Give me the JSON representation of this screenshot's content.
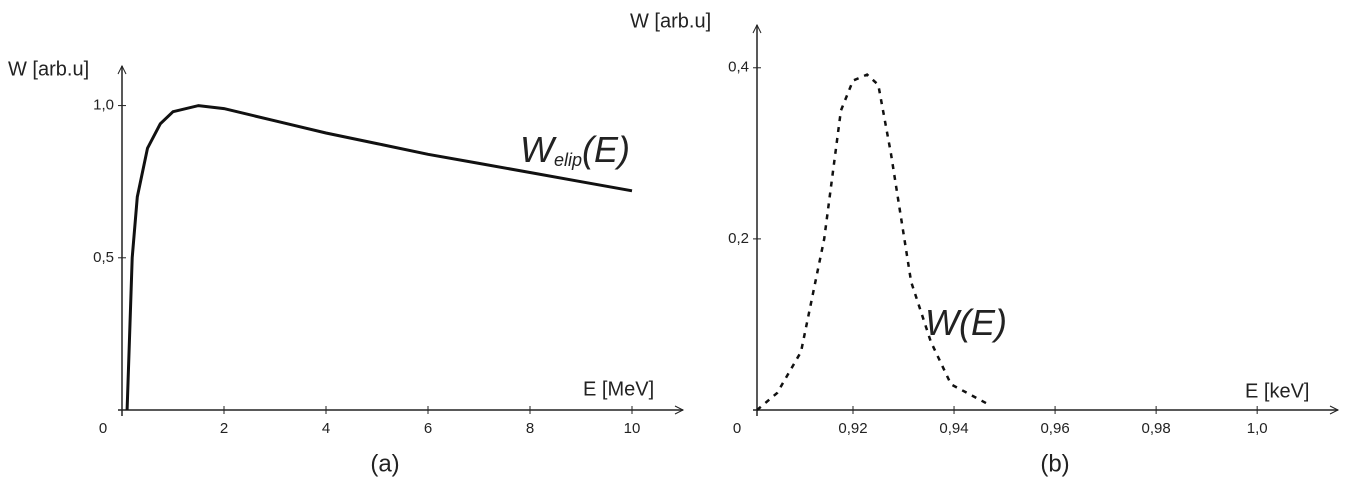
{
  "chart_data": [
    {
      "type": "line",
      "y_label": "W [arb.u]",
      "x_label": "E [MeV]",
      "caption": "(a)",
      "annotation": {
        "text": "W",
        "sub": "elip",
        "after": "(E)"
      },
      "xlim": [
        0,
        11
      ],
      "ylim": [
        0,
        1.13
      ],
      "xticks": [
        0,
        2,
        4,
        6,
        8,
        10
      ],
      "yticks": [
        {
          "value": 0.5,
          "label": "0,5"
        },
        {
          "value": 1.0,
          "label": "1,0"
        }
      ],
      "series": [
        {
          "color": "#111",
          "dash": false,
          "x": [
            0.1,
            0.2,
            0.3,
            0.5,
            0.75,
            1,
            1.5,
            2,
            3,
            4,
            5,
            6,
            7,
            8,
            9,
            10
          ],
          "values": [
            0,
            0.5,
            0.7,
            0.86,
            0.94,
            0.98,
            1.0,
            0.99,
            0.95,
            0.91,
            0.875,
            0.84,
            0.81,
            0.78,
            0.75,
            0.72
          ]
        }
      ]
    },
    {
      "type": "line",
      "y_label": "W [arb.u]",
      "x_label": "E [keV]",
      "caption": "(b)",
      "origin_label": "0",
      "annotation": {
        "text": "W(E)"
      },
      "xlim": [
        0.901,
        1.016
      ],
      "ylim": [
        0,
        0.45
      ],
      "xticks": [
        {
          "value": 0.92,
          "label": "0,92"
        },
        {
          "value": 0.94,
          "label": "0,94"
        },
        {
          "value": 0.96,
          "label": "0,96"
        },
        {
          "value": 0.98,
          "label": "0,98"
        },
        {
          "value": 1.0,
          "label": "1,0"
        }
      ],
      "yticks": [
        {
          "value": 0.2,
          "label": "0,2"
        },
        {
          "value": 0.4,
          "label": "0,4"
        }
      ],
      "series": [
        {
          "color": "#111",
          "dash": true,
          "x": [
            0.901,
            0.905,
            0.9097,
            0.9143,
            0.9176,
            0.92,
            0.9228,
            0.925,
            0.9275,
            0.9315,
            0.9354,
            0.9394,
            0.9473
          ],
          "values": [
            0,
            0.02,
            0.068,
            0.2,
            0.35,
            0.385,
            0.392,
            0.38,
            0.3,
            0.15,
            0.08,
            0.03,
            0.005
          ]
        }
      ]
    }
  ]
}
